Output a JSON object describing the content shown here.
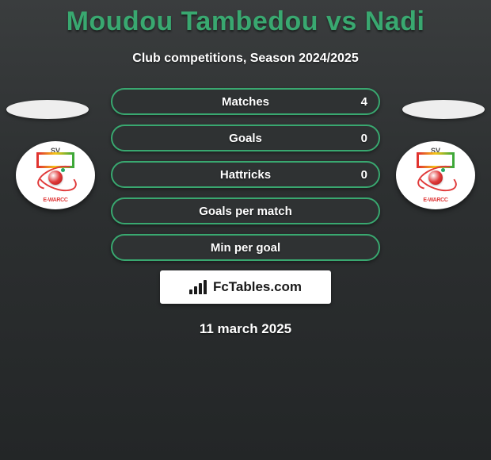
{
  "header": {
    "title": "Moudou Tambedou vs Nadi",
    "subtitle": "Club competitions, Season 2024/2025",
    "title_color": "#39a870",
    "title_fontsize": 34
  },
  "theme": {
    "accent": "#39a870",
    "background_gradient": [
      "#3a3d3e",
      "#2d3031",
      "#232627"
    ],
    "text_color": "#ffffff"
  },
  "left_logo": {
    "top_text": "SV",
    "bottom_text": "E-WARCC"
  },
  "right_logo": {
    "top_text": "SV",
    "bottom_text": "E-WARCC"
  },
  "stats": {
    "rows": [
      {
        "label": "Matches",
        "value": "4"
      },
      {
        "label": "Goals",
        "value": "0"
      },
      {
        "label": "Hattricks",
        "value": "0"
      },
      {
        "label": "Goals per match",
        "value": ""
      },
      {
        "label": "Min per goal",
        "value": ""
      }
    ],
    "row_style": {
      "border_color": "#39a870",
      "border_radius": 17,
      "height": 34,
      "background": "#2f3233",
      "label_fontsize": 15
    }
  },
  "brand": {
    "name": "FcTables.com"
  },
  "footer": {
    "date": "11 march 2025"
  }
}
